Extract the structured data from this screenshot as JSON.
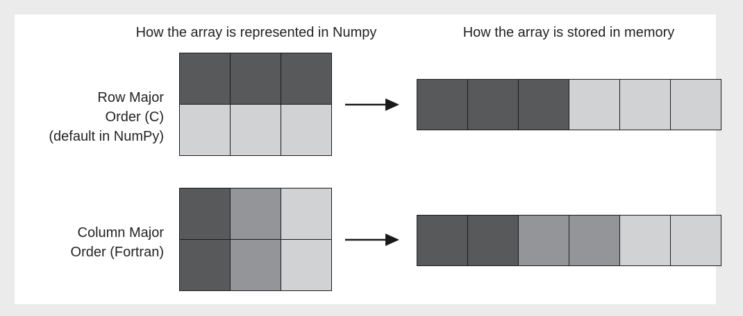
{
  "headings": {
    "representation": "How the array is represented in Numpy",
    "memory": "How the array is stored in memory"
  },
  "colors": {
    "dark": "#58595b",
    "medium": "#939598",
    "light": "#d1d2d4",
    "background": "#ebebeb",
    "panel": "#ffffff"
  },
  "rows": [
    {
      "label_lines": [
        "Row Major",
        "Order (C)",
        "(default in NumPy)"
      ],
      "grid": [
        [
          "dark",
          "dark",
          "dark"
        ],
        [
          "light",
          "light",
          "light"
        ]
      ],
      "memory": [
        "dark",
        "dark",
        "dark",
        "light",
        "light",
        "light"
      ],
      "arrow_icon": "right-arrow-icon"
    },
    {
      "label_lines": [
        "Column Major",
        "Order (Fortran)"
      ],
      "grid": [
        [
          "dark",
          "medium",
          "light"
        ],
        [
          "dark",
          "medium",
          "light"
        ]
      ],
      "memory": [
        "dark",
        "dark",
        "medium",
        "medium",
        "light",
        "light"
      ],
      "arrow_icon": "right-arrow-icon"
    }
  ]
}
